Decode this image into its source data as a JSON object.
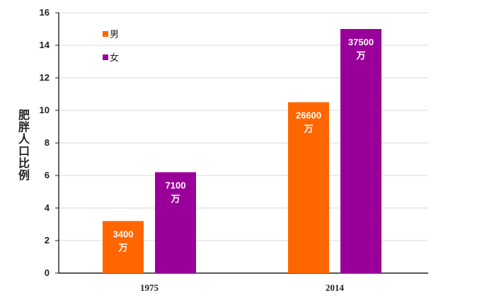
{
  "chart_data": {
    "type": "bar",
    "title": "",
    "xlabel": "",
    "ylabel": "肥胖人口比例",
    "categories": [
      "1975",
      "2014"
    ],
    "series": [
      {
        "name": "男",
        "values": [
          3.2,
          10.5
        ],
        "data_labels": [
          "3400\n万",
          "26600\n万"
        ],
        "color": "#ff6600"
      },
      {
        "name": "女",
        "values": [
          6.2,
          15.0
        ],
        "data_labels": [
          "7100\n万",
          "37500\n万"
        ],
        "color": "#990099"
      }
    ],
    "ylim": [
      0,
      16
    ],
    "yticks": [
      0,
      2,
      4,
      6,
      8,
      10,
      12,
      14,
      16
    ],
    "grid": true,
    "legend_position": "top-left",
    "colors": {
      "grid": "#d9d9d9",
      "axis": "#222222",
      "text": "#222222",
      "label_text": "#ffffff"
    }
  }
}
